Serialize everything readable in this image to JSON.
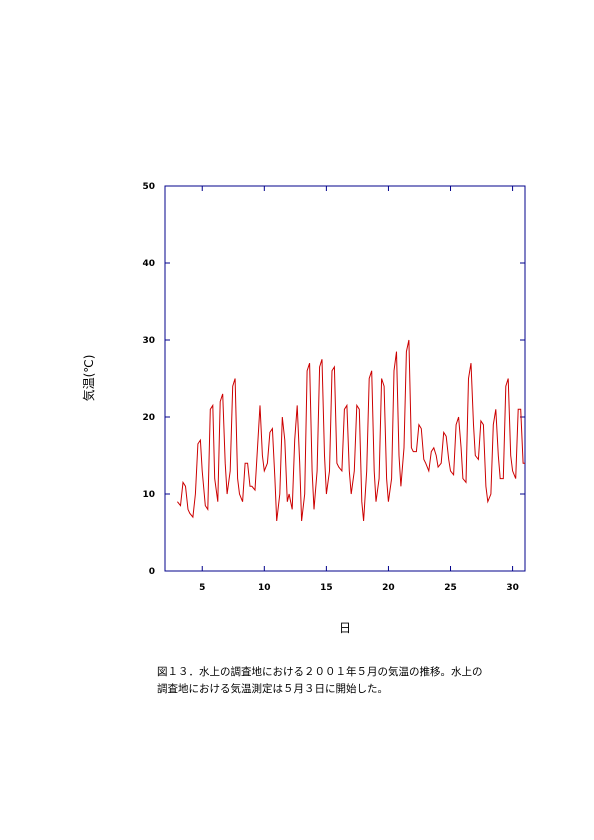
{
  "chart_data": {
    "type": "line",
    "title": "",
    "xlabel": "日",
    "ylabel": "気温(℃)",
    "xlim": [
      2,
      31
    ],
    "ylim": [
      0,
      50
    ],
    "xticks": [
      5,
      10,
      15,
      20,
      25,
      30
    ],
    "yticks": [
      0,
      10,
      20,
      30,
      40,
      50
    ],
    "grid": false,
    "legend": "none",
    "colors": {
      "line": "#cc0000",
      "frame": "#00008b"
    },
    "series": [
      {
        "x": [
          3.0,
          3.25,
          3.45,
          3.65,
          3.85,
          4.0,
          4.25,
          4.45,
          4.65,
          4.85,
          5.0,
          5.25,
          5.45,
          5.65,
          5.85,
          6.0,
          6.25,
          6.45,
          6.65,
          6.85,
          7.0,
          7.25,
          7.45,
          7.65,
          7.85,
          8.0,
          8.25,
          8.45,
          8.65,
          8.85,
          9.0,
          9.25,
          9.45,
          9.65,
          9.85,
          10.0,
          10.25,
          10.45,
          10.65,
          10.85,
          11.0,
          11.25,
          11.45,
          11.65,
          11.85,
          12.0,
          12.25,
          12.45,
          12.65,
          12.85,
          13.0,
          13.25,
          13.45,
          13.65,
          13.85,
          14.0,
          14.25,
          14.45,
          14.65,
          14.85,
          15.0,
          15.25,
          15.45,
          15.65,
          15.85,
          16.0,
          16.25,
          16.45,
          16.65,
          16.85,
          17.0,
          17.25,
          17.45,
          17.65,
          17.85,
          18.0,
          18.25,
          18.45,
          18.65,
          18.85,
          19.0,
          19.25,
          19.45,
          19.65,
          19.85,
          20.0,
          20.25,
          20.45,
          20.65,
          20.85,
          21.0,
          21.25,
          21.45,
          21.65,
          21.85,
          22.0,
          22.25,
          22.45,
          22.65,
          22.85,
          23.0,
          23.25,
          23.45,
          23.65,
          23.85,
          24.0,
          24.25,
          24.45,
          24.65,
          24.85,
          25.0,
          25.25,
          25.45,
          25.65,
          25.85,
          26.0,
          26.25,
          26.45,
          26.65,
          26.85,
          27.0,
          27.25,
          27.45,
          27.65,
          27.85,
          28.0,
          28.25,
          28.45,
          28.65,
          28.85,
          29.0,
          29.25,
          29.45,
          29.65,
          29.85,
          30.0,
          30.25,
          30.45,
          30.65,
          30.85,
          31.0
        ],
        "y": [
          9,
          8.5,
          11.5,
          11,
          8,
          7.5,
          7,
          10,
          16.5,
          17,
          13,
          8.5,
          8,
          21,
          21.5,
          12,
          9,
          22,
          23,
          14,
          10,
          13,
          24,
          25,
          12,
          10,
          9,
          14,
          14,
          11,
          11,
          10.5,
          16,
          21.5,
          15,
          13,
          14,
          18,
          18.5,
          12,
          6.5,
          10,
          20,
          17,
          9,
          10,
          8,
          17,
          21.5,
          14,
          6.5,
          10,
          26,
          27,
          13,
          8,
          13,
          26.5,
          27.5,
          15,
          10,
          13,
          26,
          26.5,
          14,
          13.5,
          13,
          21,
          21.5,
          13,
          10,
          13,
          21.5,
          21,
          9,
          6.5,
          13,
          25,
          26,
          13,
          9,
          12,
          25,
          24,
          12,
          9,
          12,
          26,
          28.5,
          15,
          11,
          16,
          28.5,
          30,
          16,
          15.5,
          15.5,
          19,
          18.5,
          14.5,
          14,
          13,
          15.5,
          16,
          15,
          13.5,
          14,
          18,
          17.5,
          14.5,
          13,
          12.5,
          19,
          20,
          16,
          12,
          11.5,
          25,
          27,
          19,
          15,
          14.5,
          19.5,
          19,
          11,
          9,
          10,
          19,
          21,
          15,
          12,
          12,
          24,
          25,
          15,
          13,
          12,
          21,
          21,
          14,
          14
        ]
      }
    ]
  },
  "caption": {
    "line1": "図１３．水上の調査地における２００１年５月の気温の推移。水上の",
    "line2": "調査地における気温測定は５月３日に開始した。"
  }
}
